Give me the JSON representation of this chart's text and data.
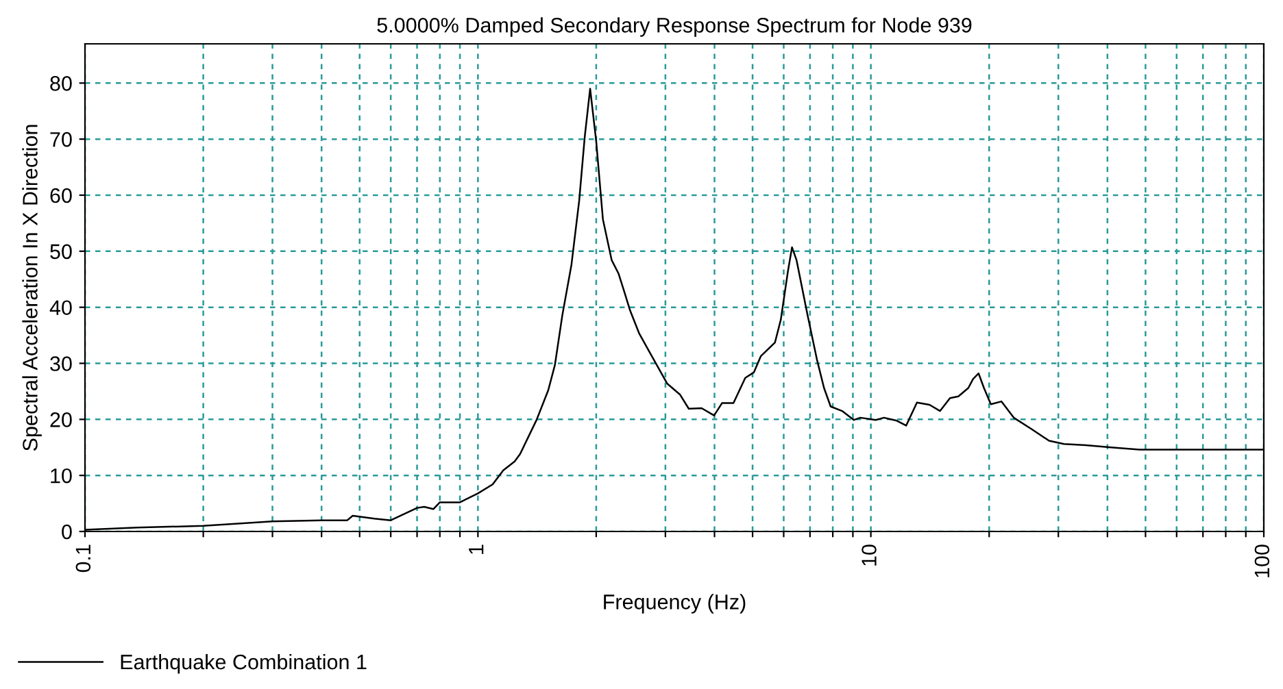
{
  "chart_data": {
    "type": "line",
    "title": "5.0000% Damped Secondary Response Spectrum for Node 939",
    "xlabel": "Frequency (Hz)",
    "ylabel": "Spectral Acceleration In X Direction",
    "log": "x",
    "grid": true,
    "legend": "bottom left",
    "line_style": "solid",
    "marker": "none",
    "xlim": [
      0.1,
      100
    ],
    "ylim": [
      0,
      87
    ],
    "xticks": [
      0.1,
      {
        "value": 0.2,
        "label": null
      },
      {
        "value": 0.3,
        "label": null
      },
      {
        "value": 0.4,
        "label": null
      },
      {
        "value": 0.5,
        "label": null
      },
      {
        "value": 0.6,
        "label": null
      },
      {
        "value": 0.7,
        "label": null
      },
      {
        "value": 0.8,
        "label": null
      },
      {
        "value": 0.9,
        "label": null
      },
      1,
      {
        "value": 2,
        "label": null
      },
      {
        "value": 3,
        "label": null
      },
      {
        "value": 4,
        "label": null
      },
      {
        "value": 5,
        "label": null
      },
      {
        "value": 6,
        "label": null
      },
      {
        "value": 7,
        "label": null
      },
      {
        "value": 8,
        "label": null
      },
      {
        "value": 9,
        "label": null
      },
      10,
      {
        "value": 20,
        "label": null
      },
      {
        "value": 30,
        "label": null
      },
      {
        "value": 40,
        "label": null
      },
      {
        "value": 50,
        "label": null
      },
      {
        "value": 60,
        "label": null
      },
      {
        "value": 70,
        "label": null
      },
      {
        "value": 80,
        "label": null
      },
      {
        "value": 90,
        "label": null
      },
      100
    ],
    "yticks": [
      0,
      10,
      20,
      30,
      40,
      50,
      60,
      70,
      80
    ],
    "series": [
      {
        "name": "Earthquake Combination 1",
        "color": "#000000",
        "x": [
          0.1,
          0.136,
          0.2,
          0.3,
          0.4,
          0.465,
          0.48,
          0.545,
          0.6,
          0.7,
          0.73,
          0.77,
          0.8,
          0.9,
          1.0,
          1.09,
          1.16,
          1.24,
          1.28,
          1.41,
          1.51,
          1.57,
          1.64,
          1.73,
          1.81,
          1.87,
          1.93,
          2.0,
          2.08,
          2.19,
          2.28,
          2.35,
          2.44,
          2.57,
          2.65,
          3.03,
          3.27,
          3.44,
          3.71,
          3.99,
          4.18,
          4.47,
          4.79,
          5.04,
          5.25,
          5.7,
          5.9,
          6.15,
          6.3,
          6.47,
          6.9,
          7.3,
          7.6,
          7.9,
          8.45,
          9.05,
          9.4,
          10.3,
          10.8,
          11.6,
          12.3,
          13.1,
          14.1,
          15.0,
          15.9,
          16.7,
          17.7,
          18.2,
          18.8,
          19.4,
          20.2,
          21.5,
          23.1,
          25.6,
          28.4,
          31.0,
          35.2,
          40.9,
          48.3,
          69.6,
          100
        ],
        "values": [
          0.3,
          0.7,
          1.0,
          1.8,
          2.0,
          2.0,
          2.8,
          2.3,
          2.0,
          4.2,
          4.4,
          4.0,
          5.2,
          5.2,
          6.8,
          8.4,
          10.9,
          12.5,
          13.8,
          19.9,
          25.2,
          29.7,
          38.6,
          47.6,
          59,
          70.4,
          79.0,
          69.6,
          55.7,
          48.4,
          46,
          43.1,
          39.4,
          35.4,
          33.7,
          26.4,
          24.4,
          21.9,
          22.0,
          20.7,
          22.9,
          22.9,
          27.4,
          28.4,
          31.3,
          33.7,
          37.8,
          46.4,
          50.7,
          48.4,
          38.6,
          30.5,
          25.6,
          22.3,
          21.5,
          19.9,
          20.3,
          19.9,
          20.3,
          19.8,
          18.9,
          23.0,
          22.6,
          21.5,
          23.8,
          24.1,
          25.6,
          27.2,
          28.2,
          25.6,
          22.7,
          23.2,
          20.3,
          18.3,
          16.2,
          15.6,
          15.4,
          15.0,
          14.6,
          14.6,
          14.6
        ]
      }
    ]
  }
}
